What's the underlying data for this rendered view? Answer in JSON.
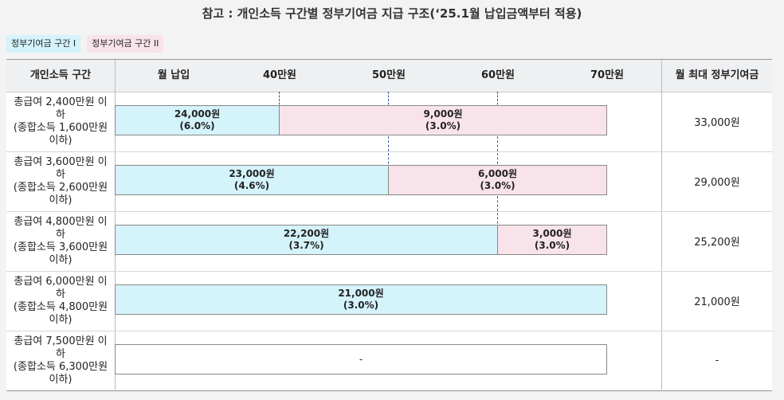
{
  "title": "참고 : 개인소득 구간별 정부기여금 지급 구조(‘25.1월 납입금액부터 적용)",
  "legend": {
    "section1": "정부기여금 구간 I",
    "section2": "정부기여금 구간 II"
  },
  "colors": {
    "section1": "#d4f3fb",
    "section2": "#f8e3ea",
    "divider": "#3a57a8"
  },
  "headers": {
    "income": "개인소득 구간",
    "monthly": "월 납입",
    "tick40": "40만원",
    "tick50": "50만원",
    "tick60": "60만원",
    "tick70": "70만원",
    "max": "월 최대 정부기여금"
  },
  "rows": [
    {
      "label1": "총급여 2,400만원 이하",
      "label2": "(종합소득 1,600만원",
      "label3": "이하)",
      "s1_amount": "24,000원",
      "s1_rate": "(6.0%)",
      "s2_amount": "9,000원",
      "s2_rate": "(3.0%)",
      "s1_until_manwon": 40,
      "s2_until_manwon": 70,
      "total": "33,000원"
    },
    {
      "label1": "총급여 3,600만원 이하",
      "label2": "(종합소득 2,600만원",
      "label3": "이하)",
      "s1_amount": "23,000원",
      "s1_rate": "(4.6%)",
      "s2_amount": "6,000원",
      "s2_rate": "(3.0%)",
      "s1_until_manwon": 50,
      "s2_until_manwon": 70,
      "total": "29,000원"
    },
    {
      "label1": "총급여 4,800만원 이하",
      "label2": "(종합소득 3,600만원",
      "label3": "이하)",
      "s1_amount": "22,200원",
      "s1_rate": "(3.7%)",
      "s2_amount": "3,000원",
      "s2_rate": "(3.0%)",
      "s1_until_manwon": 60,
      "s2_until_manwon": 70,
      "total": "25,200원"
    },
    {
      "label1": "총급여 6,000만원 이하",
      "label2": "(종합소득 4,800만원",
      "label3": "이하)",
      "s1_amount": "21,000원",
      "s1_rate": "(3.0%)",
      "s1_until_manwon": 70,
      "total": "21,000원"
    },
    {
      "label1": "총급여 7,500만원 이하",
      "label2": "(종합소득 6,300만원",
      "label3": "이하)",
      "none": "-",
      "total": "-"
    }
  ]
}
